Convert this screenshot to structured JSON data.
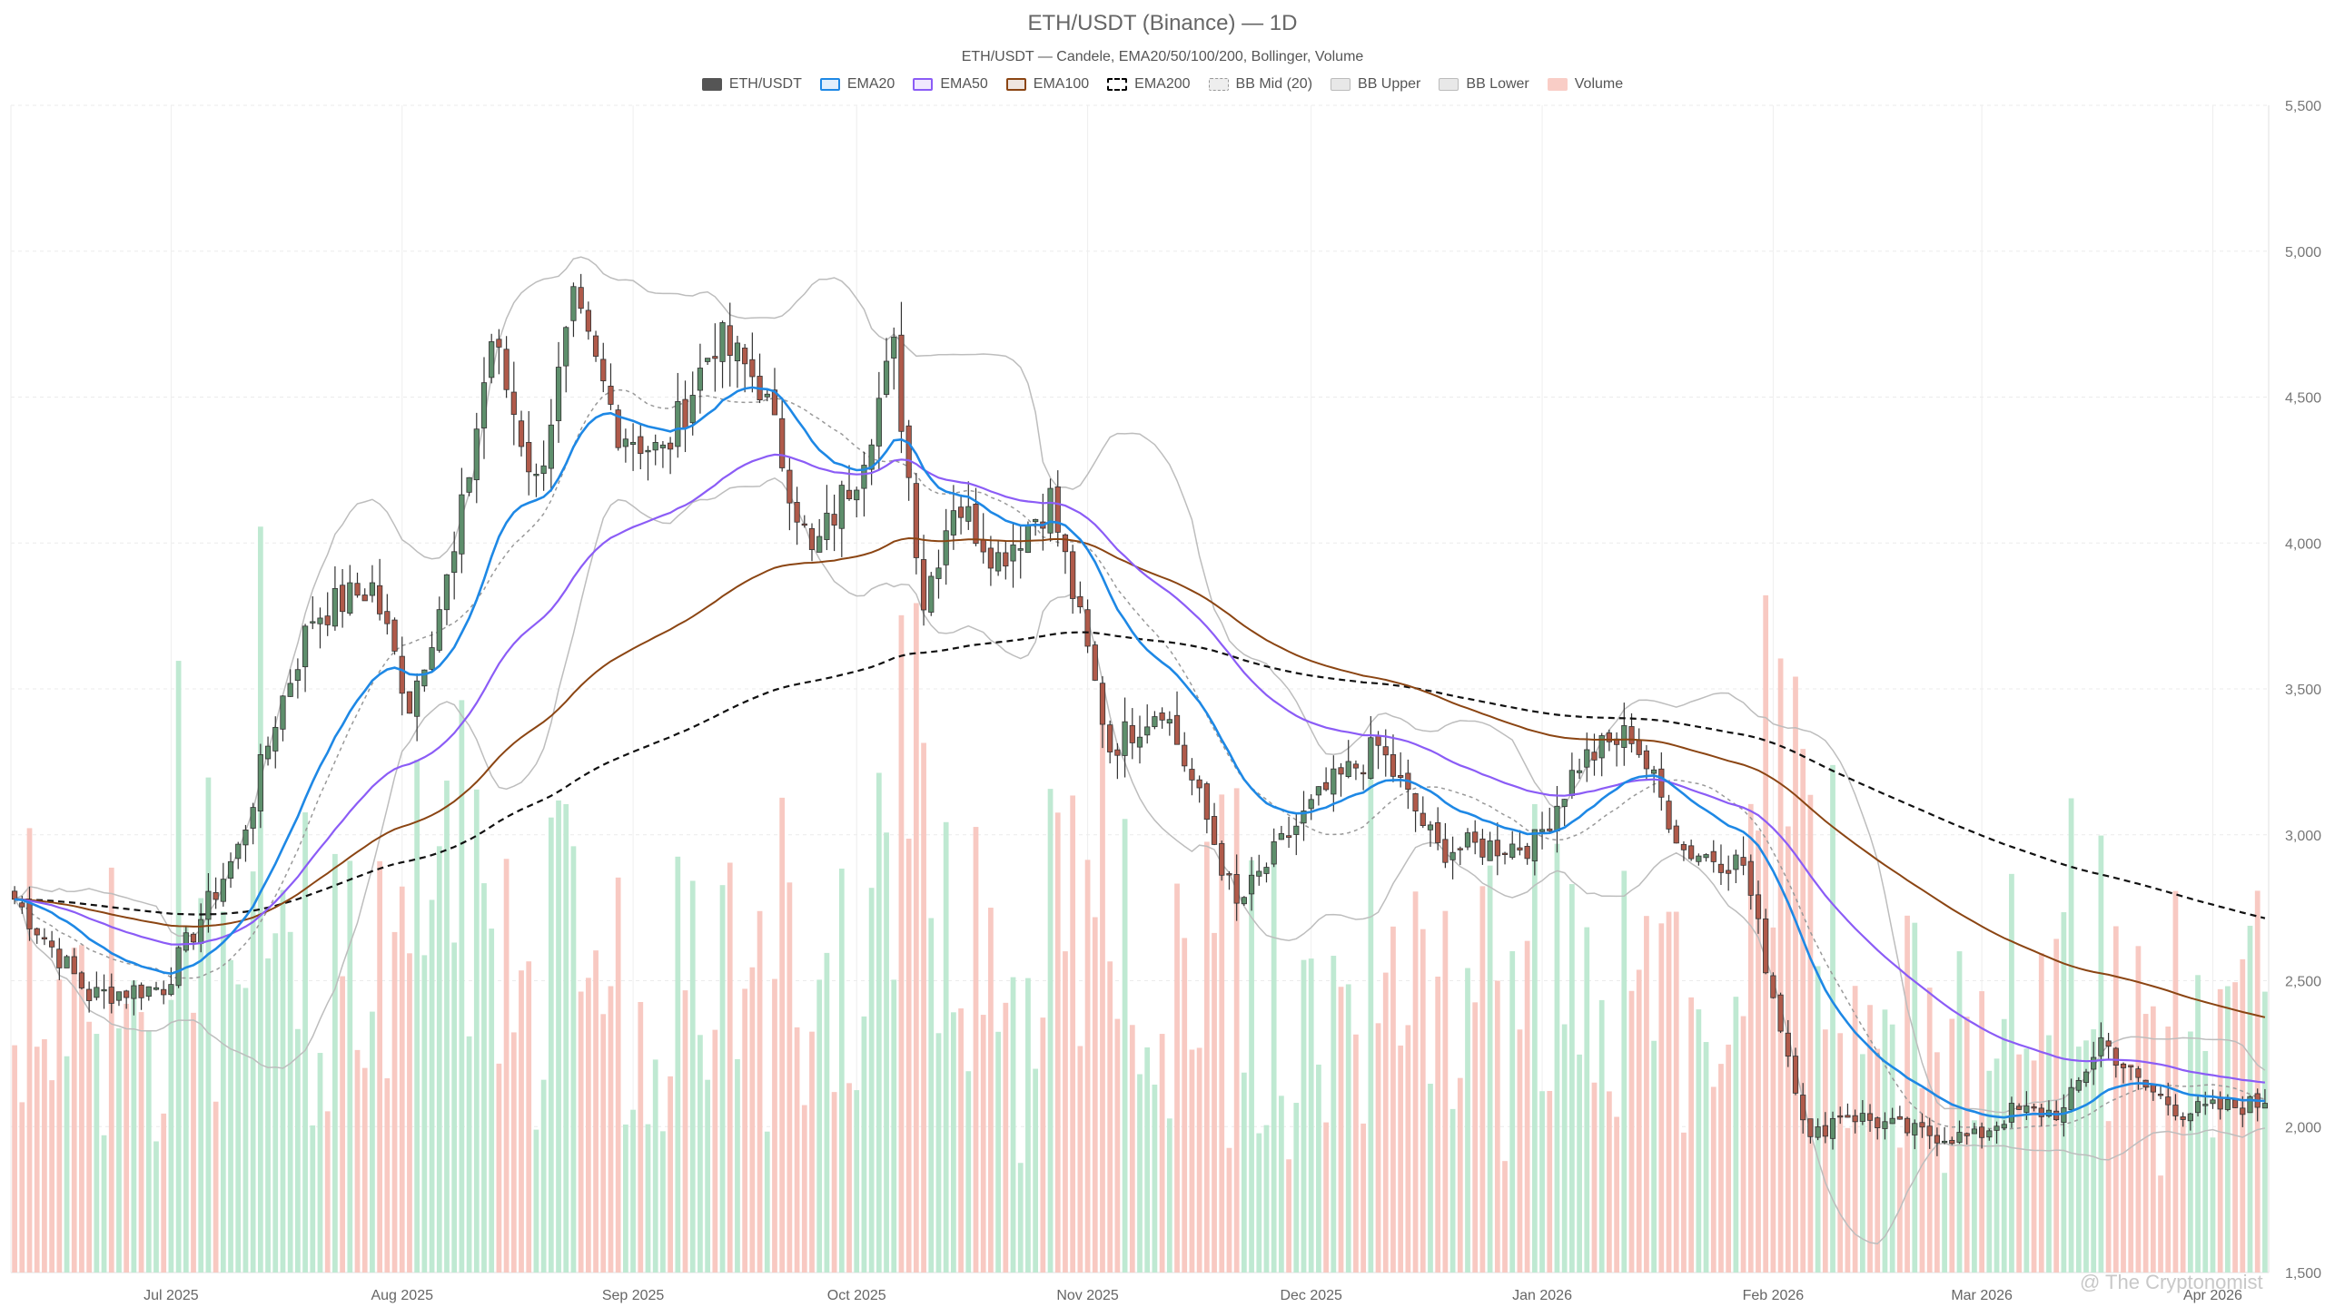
{
  "chart_data": {
    "type": "candlestick",
    "title": "ETH/USDT (Binance) — 1D",
    "subtitle": "ETH/USDT — Candele, EMA20/50/100/200, Bollinger, Volume",
    "legend": [
      {
        "label": "ETH/USDT",
        "color": "#555555",
        "style": "fill"
      },
      {
        "label": "EMA20",
        "color": "#1e88e5",
        "style": "line"
      },
      {
        "label": "EMA50",
        "color": "#8b5cf6",
        "style": "line"
      },
      {
        "label": "EMA100",
        "color": "#8b4513",
        "style": "line"
      },
      {
        "label": "EMA200",
        "color": "#000000",
        "style": "dashed"
      },
      {
        "label": "BB Mid (20)",
        "color": "#999999",
        "style": "dotted"
      },
      {
        "label": "BB Upper",
        "color": "#bbbbbb",
        "style": "light"
      },
      {
        "label": "BB Lower",
        "color": "#bbbbbb",
        "style": "light"
      },
      {
        "label": "Volume",
        "color": "#f7b6ae",
        "style": "vol"
      }
    ],
    "colors": {
      "up": "#5e8f6c",
      "down": "#b05a4a",
      "vol_up": "#bfe9d2",
      "vol_down": "#f8c9c2"
    },
    "y_axis": {
      "ticks": [
        "5,500",
        "5,000",
        "4,500",
        "4,000",
        "3,500",
        "3,000",
        "2,500",
        "2,000",
        "1,500"
      ],
      "ylim": [
        1500,
        5500
      ]
    },
    "x_axis": {
      "ticks": [
        "Jul 2025",
        "Aug 2025",
        "Sep 2025",
        "Oct 2025",
        "Nov 2025",
        "Dec 2025",
        "Jan 2026",
        "Feb 2026",
        "Mar 2026",
        "Apr 2026"
      ],
      "xlim": [
        "2025-06-10",
        "2026-04-08"
      ]
    },
    "grid": true,
    "legend_position": "top-center",
    "daily_close_anchors": [
      {
        "date": "2025-06-10",
        "close": 2780
      },
      {
        "date": "2025-06-20",
        "close": 2450
      },
      {
        "date": "2025-06-30",
        "close": 2480
      },
      {
        "date": "2025-07-10",
        "close": 2950
      },
      {
        "date": "2025-07-15",
        "close": 3400
      },
      {
        "date": "2025-07-20",
        "close": 3750
      },
      {
        "date": "2025-07-28",
        "close": 3850
      },
      {
        "date": "2025-08-02",
        "close": 3450
      },
      {
        "date": "2025-08-08",
        "close": 3950
      },
      {
        "date": "2025-08-13",
        "close": 4700
      },
      {
        "date": "2025-08-19",
        "close": 4200
      },
      {
        "date": "2025-08-24",
        "close": 4800
      },
      {
        "date": "2025-08-30",
        "close": 4400
      },
      {
        "date": "2025-09-05",
        "close": 4300
      },
      {
        "date": "2025-09-12",
        "close": 4700
      },
      {
        "date": "2025-09-18",
        "close": 4550
      },
      {
        "date": "2025-09-25",
        "close": 3950
      },
      {
        "date": "2025-10-01",
        "close": 4250
      },
      {
        "date": "2025-10-06",
        "close": 4650
      },
      {
        "date": "2025-10-10",
        "close": 3800
      },
      {
        "date": "2025-10-14",
        "close": 4150
      },
      {
        "date": "2025-10-20",
        "close": 3950
      },
      {
        "date": "2025-10-27",
        "close": 4150
      },
      {
        "date": "2025-11-04",
        "close": 3300
      },
      {
        "date": "2025-11-11",
        "close": 3450
      },
      {
        "date": "2025-11-17",
        "close": 3050
      },
      {
        "date": "2025-11-21",
        "close": 2750
      },
      {
        "date": "2025-11-28",
        "close": 3000
      },
      {
        "date": "2025-12-03",
        "close": 3150
      },
      {
        "date": "2025-12-10",
        "close": 3300
      },
      {
        "date": "2025-12-18",
        "close": 2950
      },
      {
        "date": "2025-12-31",
        "close": 2970
      },
      {
        "date": "2026-01-06",
        "close": 3250
      },
      {
        "date": "2026-01-13",
        "close": 3350
      },
      {
        "date": "2026-01-20",
        "close": 2950
      },
      {
        "date": "2026-01-28",
        "close": 2900
      },
      {
        "date": "2026-02-01",
        "close": 2450
      },
      {
        "date": "2026-02-06",
        "close": 1950
      },
      {
        "date": "2026-02-10",
        "close": 2050
      },
      {
        "date": "2026-02-20",
        "close": 1980
      },
      {
        "date": "2026-02-28",
        "close": 1960
      },
      {
        "date": "2026-03-05",
        "close": 2050
      },
      {
        "date": "2026-03-12",
        "close": 2050
      },
      {
        "date": "2026-03-17",
        "close": 2300
      },
      {
        "date": "2026-03-22",
        "close": 2150
      },
      {
        "date": "2026-03-28",
        "close": 2050
      },
      {
        "date": "2026-04-08",
        "close": 2080
      }
    ]
  },
  "watermark": "@ The Cryptonomist"
}
